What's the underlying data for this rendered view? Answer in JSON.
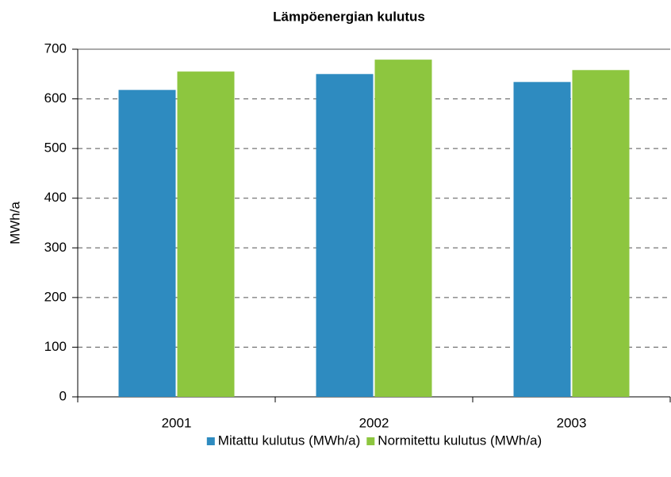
{
  "chart_data": {
    "type": "bar",
    "title": "Lämpöenergian kulutus",
    "y_label": "MWh/a",
    "categories": [
      "2001",
      "2002",
      "2003"
    ],
    "series": [
      {
        "name": "Mitattu kulutus (MWh/a)",
        "color": "#2e8bc0",
        "values": [
          618,
          650,
          634
        ]
      },
      {
        "name": "Normitettu kulutus (MWh/a)",
        "color": "#8dc63f",
        "values": [
          655,
          679,
          658
        ]
      }
    ],
    "ylim": [
      0,
      700
    ],
    "yticks": [
      0,
      100,
      200,
      300,
      400,
      500,
      600,
      700
    ],
    "grid": true,
    "legend": "bottom"
  }
}
